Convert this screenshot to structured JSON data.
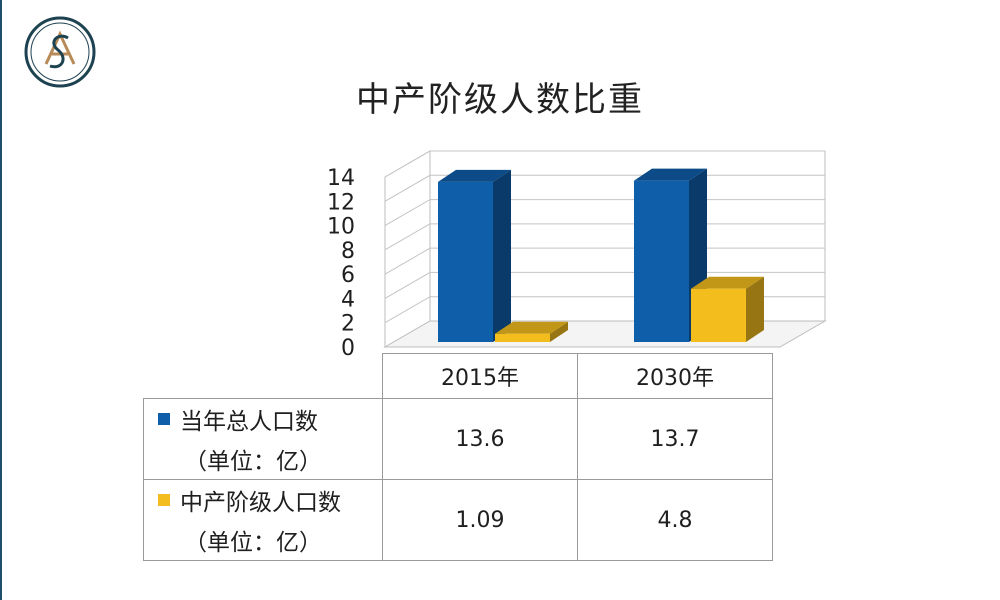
{
  "title": "中产阶级人数比重",
  "logo_text": "SA",
  "colors": {
    "series1": "#0f5ea9",
    "series2": "#f2bd1d",
    "logo": "#1d4250",
    "logo_accent": "#b88a58"
  },
  "chart_data": {
    "type": "bar",
    "categories": [
      "2015年",
      "2030年"
    ],
    "series": [
      {
        "name": "当年总人口数",
        "unit": "（单位：亿）",
        "values": [
          13.6,
          13.7
        ]
      },
      {
        "name": "中产阶级人口数",
        "unit": "（单位：亿）",
        "values": [
          1.09,
          4.8
        ]
      }
    ],
    "yticks": [
      0,
      2,
      4,
      6,
      8,
      10,
      12,
      14
    ],
    "ylim": [
      0,
      14
    ],
    "grid": true,
    "legend": "data table below chart"
  },
  "table": {
    "headers": [
      "2015年",
      "2030年"
    ],
    "rows": [
      {
        "label": "当年总人口数",
        "unit": "（单位：亿）",
        "values": [
          "13.6",
          "13.7"
        ]
      },
      {
        "label": "中产阶级人口数",
        "unit": "（单位：亿）",
        "values": [
          "1.09",
          "4.8"
        ]
      }
    ]
  }
}
